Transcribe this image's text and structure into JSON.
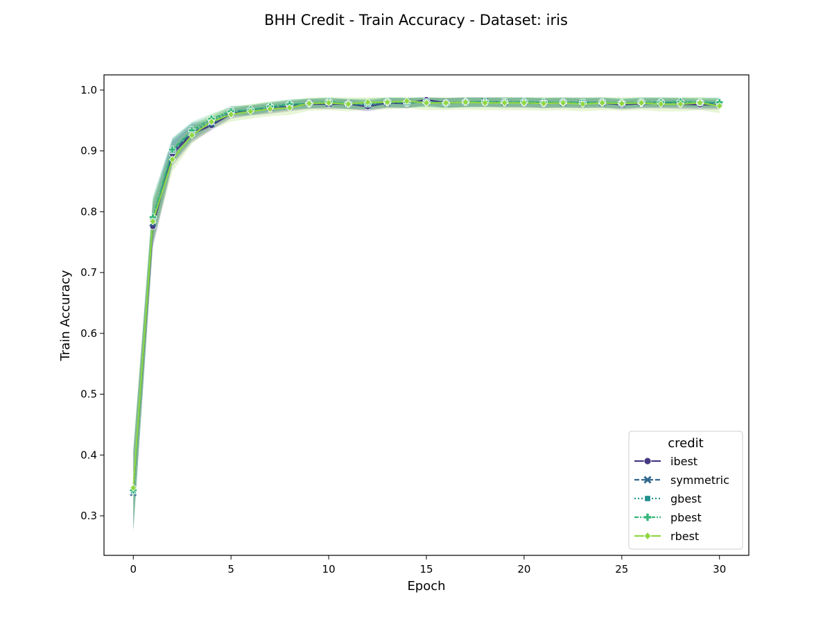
{
  "chart_data": {
    "type": "line",
    "title": "BHH Credit - Train Accuracy - Dataset: iris",
    "xlabel": "Epoch",
    "ylabel": "Train Accuracy",
    "xlim": [
      -1.5,
      31.5
    ],
    "ylim": [
      0.235,
      1.025
    ],
    "xticks": [
      0,
      5,
      10,
      15,
      20,
      25,
      30
    ],
    "xtick_labels": [
      "0",
      "5",
      "10",
      "15",
      "20",
      "25",
      "30"
    ],
    "yticks": [
      0.3,
      0.4,
      0.5,
      0.6,
      0.7,
      0.8,
      0.9,
      1.0
    ],
    "ytick_labels": [
      "0.3",
      "0.4",
      "0.5",
      "0.6",
      "0.7",
      "0.8",
      "0.9",
      "1.0"
    ],
    "grid": false,
    "legend": {
      "title": "credit",
      "placement": "lower-right"
    },
    "x": [
      0,
      1,
      2,
      3,
      4,
      5,
      6,
      7,
      8,
      9,
      10,
      11,
      12,
      13,
      14,
      15,
      16,
      17,
      18,
      19,
      20,
      21,
      22,
      23,
      24,
      25,
      26,
      27,
      28,
      29,
      30
    ],
    "series": [
      {
        "name": "ibest",
        "color": "#443983",
        "marker": "circle",
        "dash": "solid",
        "values": [
          0.343,
          0.776,
          0.895,
          0.928,
          0.942,
          0.961,
          0.966,
          0.969,
          0.973,
          0.977,
          0.977,
          0.977,
          0.973,
          0.979,
          0.978,
          0.984,
          0.979,
          0.98,
          0.98,
          0.979,
          0.979,
          0.978,
          0.979,
          0.978,
          0.979,
          0.976,
          0.978,
          0.978,
          0.977,
          0.976,
          0.976
        ],
        "band": 0.008
      },
      {
        "name": "symmetric",
        "color": "#31688e",
        "marker": "x",
        "dash": "dashed",
        "values": [
          0.338,
          0.781,
          0.899,
          0.931,
          0.944,
          0.963,
          0.967,
          0.971,
          0.975,
          0.978,
          0.978,
          0.977,
          0.975,
          0.979,
          0.979,
          0.981,
          0.979,
          0.98,
          0.981,
          0.98,
          0.98,
          0.979,
          0.979,
          0.979,
          0.979,
          0.977,
          0.979,
          0.979,
          0.979,
          0.978,
          0.978
        ],
        "band": 0.008
      },
      {
        "name": "gbest",
        "color": "#21918c",
        "marker": "square",
        "dash": "dotted",
        "values": [
          0.34,
          0.786,
          0.9,
          0.932,
          0.948,
          0.966,
          0.967,
          0.972,
          0.976,
          0.978,
          0.98,
          0.977,
          0.977,
          0.98,
          0.979,
          0.981,
          0.979,
          0.98,
          0.98,
          0.981,
          0.98,
          0.979,
          0.98,
          0.98,
          0.98,
          0.978,
          0.98,
          0.98,
          0.979,
          0.979,
          0.979
        ],
        "band": 0.008
      },
      {
        "name": "pbest",
        "color": "#35b779",
        "marker": "plus",
        "dash": "dashdot",
        "values": [
          0.342,
          0.791,
          0.902,
          0.934,
          0.953,
          0.965,
          0.968,
          0.973,
          0.977,
          0.978,
          0.981,
          0.978,
          0.978,
          0.981,
          0.98,
          0.98,
          0.978,
          0.981,
          0.981,
          0.98,
          0.981,
          0.98,
          0.98,
          0.979,
          0.98,
          0.979,
          0.98,
          0.98,
          0.981,
          0.98,
          0.98
        ],
        "band": 0.008
      },
      {
        "name": "rbest",
        "color": "#90d743",
        "marker": "diamond",
        "dash": "solid",
        "values": [
          0.346,
          0.784,
          0.886,
          0.926,
          0.948,
          0.96,
          0.965,
          0.969,
          0.971,
          0.978,
          0.979,
          0.977,
          0.98,
          0.98,
          0.982,
          0.979,
          0.979,
          0.98,
          0.979,
          0.979,
          0.979,
          0.978,
          0.979,
          0.977,
          0.979,
          0.978,
          0.979,
          0.977,
          0.977,
          0.979,
          0.974
        ],
        "band": 0.012
      }
    ]
  }
}
